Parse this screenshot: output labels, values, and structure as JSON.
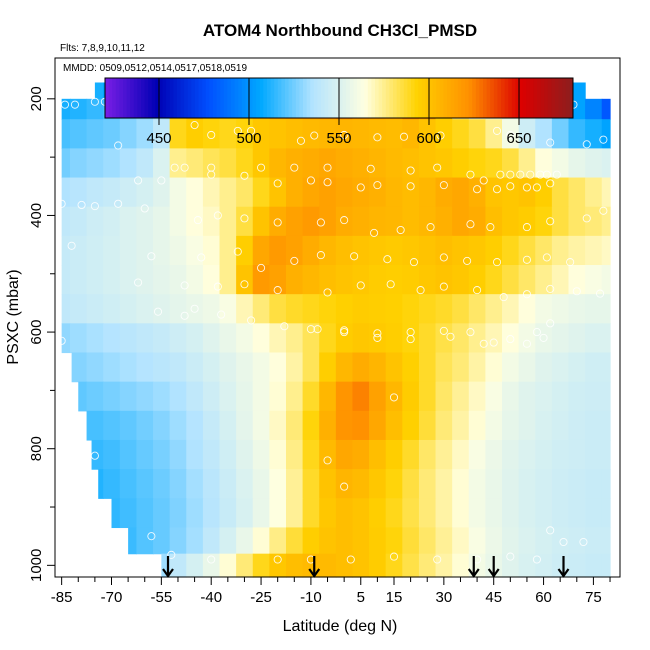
{
  "chart_data": {
    "type": "heatmap",
    "title": "ATOM4 Northbound CH3Cl_PMSD",
    "flights_label": "Flts: 7,8,9,10,11,12",
    "dates_label": "MMDD: 0509,0512,0514,0517,0518,0519",
    "xlabel": "Latitude (deg N)",
    "ylabel": "PSXC (mbar)",
    "xlim": [
      -87,
      83
    ],
    "ylim": [
      1020,
      130
    ],
    "x_ticks": [
      -85,
      -70,
      -55,
      -40,
      -25,
      -10,
      5,
      15,
      30,
      45,
      60,
      75
    ],
    "y_ticks": [
      200,
      400,
      600,
      800,
      1000
    ],
    "colorbar": {
      "min": 420,
      "max": 680,
      "ticks": [
        450,
        500,
        550,
        600,
        650
      ],
      "colors": [
        "#7a1ee6",
        "#0000b4",
        "#0050ff",
        "#00a8ff",
        "#b4e4ff",
        "#ffffe0",
        "#ffd200",
        "#ff9000",
        "#dc0000",
        "#8c1e1e"
      ]
    },
    "arrows_lat": [
      -53,
      -9,
      39,
      45,
      66
    ],
    "lat_grid": [
      -85,
      -80,
      -75,
      -70,
      -65,
      -60,
      -55,
      -50,
      -45,
      -40,
      -35,
      -30,
      -25,
      -20,
      -15,
      -10,
      -5,
      0,
      5,
      10,
      15,
      20,
      25,
      30,
      35,
      40,
      45,
      50,
      55,
      60,
      65,
      70,
      75,
      80
    ],
    "pressure_bins": [
      {
        "p": 190,
        "lat_range": [
          -75,
          75
        ],
        "values": [
          null,
          null,
          510,
          505,
          515,
          525,
          540,
          570,
          610,
          630,
          640,
          650,
          660,
          660,
          665,
          665,
          665,
          660,
          650,
          640,
          625,
          615,
          600,
          585,
          575,
          565,
          555,
          545,
          530,
          515,
          505,
          505,
          null,
          null
        ]
      },
      {
        "p": 210,
        "lat_range": [
          -85,
          80
        ],
        "values": [
          510,
          512,
          515,
          518,
          522,
          525,
          530,
          600,
          610,
          600,
          595,
          598,
          605,
          612,
          615,
          618,
          622,
          625,
          620,
          618,
          615,
          625,
          620,
          595,
          575,
          565,
          560,
          555,
          545,
          535,
          520,
          505,
          495,
          480
        ]
      },
      {
        "p": 260,
        "lat_range": [
          -85,
          80
        ],
        "values": [
          518,
          520,
          522,
          524,
          528,
          532,
          540,
          590,
          595,
          592,
          590,
          592,
          598,
          600,
          602,
          604,
          605,
          606,
          605,
          604,
          603,
          605,
          600,
          595,
          590,
          585,
          575,
          560,
          545,
          535,
          525,
          515,
          510,
          505
        ]
      },
      {
        "p": 310,
        "lat_range": [
          -85,
          80
        ],
        "values": [
          525,
          528,
          530,
          532,
          535,
          540,
          550,
          575,
          578,
          582,
          585,
          590,
          598,
          605,
          608,
          610,
          612,
          610,
          608,
          606,
          604,
          602,
          600,
          598,
          595,
          592,
          590,
          585,
          575,
          565,
          560,
          555,
          552,
          550
        ]
      },
      {
        "p": 360,
        "lat_range": [
          -85,
          80
        ],
        "values": [
          535,
          537,
          540,
          542,
          545,
          548,
          552,
          560,
          565,
          570,
          575,
          580,
          590,
          600,
          608,
          612,
          615,
          612,
          610,
          608,
          605,
          603,
          605,
          610,
          612,
          608,
          600,
          598,
          600,
          595,
          585,
          580,
          575,
          570
        ]
      },
      {
        "p": 410,
        "lat_range": [
          -85,
          80
        ],
        "values": [
          540,
          542,
          545,
          547,
          550,
          552,
          555,
          560,
          565,
          568,
          575,
          585,
          600,
          610,
          615,
          618,
          615,
          610,
          608,
          606,
          605,
          603,
          605,
          608,
          612,
          610,
          602,
          598,
          596,
          592,
          585,
          580,
          578,
          575
        ]
      },
      {
        "p": 460,
        "lat_range": [
          -85,
          80
        ],
        "values": [
          542,
          544,
          546,
          548,
          550,
          552,
          555,
          558,
          562,
          566,
          575,
          595,
          612,
          618,
          615,
          610,
          605,
          602,
          600,
          598,
          597,
          598,
          600,
          602,
          600,
          598,
          595,
          590,
          585,
          580,
          575,
          572,
          570,
          568
        ]
      },
      {
        "p": 510,
        "lat_range": [
          -85,
          80
        ],
        "values": [
          542,
          544,
          546,
          548,
          550,
          552,
          554,
          556,
          560,
          565,
          575,
          600,
          618,
          615,
          608,
          605,
          602,
          600,
          598,
          596,
          595,
          596,
          598,
          600,
          598,
          595,
          590,
          585,
          580,
          575,
          570,
          565,
          562,
          560
        ]
      },
      {
        "p": 560,
        "lat_range": [
          -85,
          80
        ],
        "values": [
          540,
          542,
          544,
          546,
          548,
          550,
          552,
          554,
          556,
          558,
          562,
          570,
          578,
          585,
          588,
          590,
          592,
          594,
          596,
          595,
          594,
          592,
          590,
          588,
          585,
          580,
          575,
          570,
          565,
          560,
          558,
          556,
          555,
          555
        ]
      },
      {
        "p": 610,
        "lat_range": [
          -85,
          80
        ],
        "values": [
          530,
          532,
          534,
          536,
          538,
          540,
          542,
          545,
          548,
          552,
          556,
          560,
          565,
          570,
          575,
          582,
          590,
          596,
          598,
          597,
          595,
          592,
          588,
          584,
          580,
          575,
          570,
          565,
          560,
          556,
          554,
          552,
          550,
          550
        ]
      },
      {
        "p": 660,
        "lat_range": [
          -82,
          80
        ],
        "values": [
          null,
          528,
          530,
          532,
          534,
          536,
          538,
          540,
          544,
          548,
          552,
          556,
          560,
          565,
          572,
          582,
          595,
          605,
          610,
          606,
          600,
          594,
          588,
          582,
          578,
          572,
          566,
          560,
          556,
          552,
          550,
          548,
          546,
          546
        ]
      },
      {
        "p": 710,
        "lat_range": [
          -80,
          80
        ],
        "values": [
          null,
          522,
          524,
          526,
          528,
          530,
          532,
          535,
          540,
          545,
          550,
          555,
          560,
          566,
          575,
          588,
          605,
          620,
          625,
          615,
          605,
          596,
          588,
          580,
          574,
          568,
          562,
          556,
          552,
          550,
          548,
          546,
          545,
          545
        ]
      },
      {
        "p": 760,
        "lat_range": [
          -78,
          80
        ],
        "values": [
          null,
          null,
          518,
          520,
          522,
          525,
          528,
          532,
          536,
          542,
          548,
          554,
          560,
          568,
          578,
          592,
          608,
          620,
          622,
          612,
          602,
          594,
          586,
          578,
          572,
          566,
          560,
          555,
          552,
          549,
          547,
          545,
          544,
          544
        ]
      },
      {
        "p": 810,
        "lat_range": [
          -76,
          80
        ],
        "values": [
          null,
          null,
          515,
          517,
          520,
          523,
          526,
          530,
          535,
          540,
          546,
          552,
          558,
          566,
          576,
          590,
          604,
          612,
          610,
          602,
          595,
          588,
          580,
          574,
          568,
          562,
          557,
          553,
          550,
          548,
          546,
          545,
          544,
          544
        ]
      },
      {
        "p": 860,
        "lat_range": [
          -74,
          80
        ],
        "values": [
          null,
          null,
          512,
          515,
          518,
          521,
          524,
          528,
          533,
          538,
          544,
          550,
          556,
          564,
          574,
          588,
          600,
          606,
          604,
          598,
          592,
          585,
          578,
          572,
          566,
          560,
          556,
          552,
          549,
          547,
          545,
          544,
          543,
          543
        ]
      },
      {
        "p": 910,
        "lat_range": [
          -70,
          80
        ],
        "values": [
          null,
          null,
          null,
          514,
          517,
          520,
          523,
          527,
          532,
          537,
          543,
          549,
          556,
          564,
          574,
          588,
          598,
          602,
          600,
          595,
          590,
          584,
          578,
          572,
          566,
          560,
          556,
          552,
          549,
          547,
          545,
          544,
          543,
          543
        ]
      },
      {
        "p": 960,
        "lat_range": [
          -65,
          80
        ],
        "values": [
          null,
          null,
          null,
          null,
          516,
          520,
          523,
          528,
          533,
          540,
          548,
          556,
          566,
          576,
          586,
          595,
          600,
          602,
          600,
          596,
          592,
          586,
          580,
          574,
          568,
          562,
          557,
          553,
          550,
          548,
          546,
          545,
          544,
          544
        ]
      },
      {
        "p": 1000,
        "lat_range": [
          -55,
          80
        ],
        "values": [
          null,
          null,
          null,
          null,
          null,
          null,
          532,
          540,
          548,
          556,
          566,
          578,
          590,
          598,
          602,
          604,
          604,
          602,
          600,
          596,
          590,
          584,
          578,
          572,
          566,
          560,
          556,
          552,
          549,
          547,
          545,
          544,
          543,
          543
        ]
      }
    ],
    "observations": [
      [
        -70,
        193
      ],
      [
        -66,
        193
      ],
      [
        -63,
        193
      ],
      [
        -61,
        193
      ],
      [
        -58,
        193
      ],
      [
        -84,
        210
      ],
      [
        -81,
        210
      ],
      [
        -75,
        205
      ],
      [
        -72,
        205
      ],
      [
        -20,
        210
      ],
      [
        63,
        210
      ],
      [
        66,
        210
      ],
      [
        69,
        210
      ],
      [
        -68,
        280
      ],
      [
        -45,
        245
      ],
      [
        -40,
        262
      ],
      [
        -32,
        255
      ],
      [
        -28,
        255
      ],
      [
        -13,
        272
      ],
      [
        -9,
        263
      ],
      [
        0,
        262
      ],
      [
        10,
        266
      ],
      [
        18,
        265
      ],
      [
        29,
        263
      ],
      [
        46,
        255
      ],
      [
        50,
        262
      ],
      [
        62,
        275
      ],
      [
        73,
        278
      ],
      [
        78,
        270
      ],
      [
        -51,
        318
      ],
      [
        -48,
        318
      ],
      [
        -40,
        318
      ],
      [
        -25,
        318
      ],
      [
        -15,
        318
      ],
      [
        -5,
        318
      ],
      [
        8,
        320
      ],
      [
        20,
        323
      ],
      [
        28,
        318
      ],
      [
        38,
        330
      ],
      [
        42,
        340
      ],
      [
        47,
        330
      ],
      [
        50,
        330
      ],
      [
        53,
        330
      ],
      [
        56,
        330
      ],
      [
        59,
        330
      ],
      [
        61,
        330
      ],
      [
        64,
        330
      ],
      [
        -62,
        340
      ],
      [
        -55,
        340
      ],
      [
        -40,
        330
      ],
      [
        -30,
        332
      ],
      [
        -20,
        345
      ],
      [
        -10,
        340
      ],
      [
        -5,
        343
      ],
      [
        5,
        352
      ],
      [
        10,
        348
      ],
      [
        20,
        350
      ],
      [
        30,
        348
      ],
      [
        40,
        355
      ],
      [
        46,
        355
      ],
      [
        50,
        350
      ],
      [
        55,
        352
      ],
      [
        58,
        352
      ],
      [
        62,
        345
      ],
      [
        -85,
        380
      ],
      [
        -79,
        382
      ],
      [
        -75,
        384
      ],
      [
        -68,
        380
      ],
      [
        -60,
        388
      ],
      [
        -44,
        408
      ],
      [
        -38,
        400
      ],
      [
        -30,
        405
      ],
      [
        -20,
        412
      ],
      [
        -7,
        412
      ],
      [
        0,
        408
      ],
      [
        9,
        430
      ],
      [
        17,
        425
      ],
      [
        26,
        420
      ],
      [
        38,
        415
      ],
      [
        44,
        420
      ],
      [
        55,
        420
      ],
      [
        62,
        410
      ],
      [
        73,
        405
      ],
      [
        78,
        392
      ],
      [
        -82,
        452
      ],
      [
        -58,
        470
      ],
      [
        -43,
        472
      ],
      [
        -32,
        462
      ],
      [
        -25,
        490
      ],
      [
        -15,
        478
      ],
      [
        -7,
        468
      ],
      [
        3,
        470
      ],
      [
        13,
        475
      ],
      [
        21,
        480
      ],
      [
        30,
        472
      ],
      [
        37,
        478
      ],
      [
        46,
        480
      ],
      [
        55,
        476
      ],
      [
        61,
        472
      ],
      [
        68,
        480
      ],
      [
        -62,
        515
      ],
      [
        -48,
        520
      ],
      [
        -38,
        522
      ],
      [
        -30,
        518
      ],
      [
        -20,
        528
      ],
      [
        -5,
        532
      ],
      [
        5,
        520
      ],
      [
        14,
        518
      ],
      [
        23,
        528
      ],
      [
        30,
        522
      ],
      [
        40,
        528
      ],
      [
        48,
        540
      ],
      [
        55,
        535
      ],
      [
        62,
        526
      ],
      [
        70,
        530
      ],
      [
        77,
        534
      ],
      [
        -56,
        565
      ],
      [
        -48,
        572
      ],
      [
        -45,
        560
      ],
      [
        -37,
        570
      ],
      [
        -28,
        580
      ],
      [
        -18,
        590
      ],
      [
        -8,
        595
      ],
      [
        0,
        600
      ],
      [
        10,
        610
      ],
      [
        20,
        612
      ],
      [
        32,
        608
      ],
      [
        42,
        620
      ],
      [
        50,
        612
      ],
      [
        58,
        600
      ],
      [
        62,
        585
      ],
      [
        -85,
        615
      ],
      [
        -10,
        595
      ],
      [
        0,
        597
      ],
      [
        10,
        602
      ],
      [
        20,
        600
      ],
      [
        30,
        598
      ],
      [
        38,
        600
      ],
      [
        45,
        618
      ],
      [
        55,
        620
      ],
      [
        60,
        610
      ],
      [
        -75,
        812
      ],
      [
        15,
        712
      ],
      [
        -5,
        820
      ],
      [
        0,
        865
      ],
      [
        -58,
        950
      ],
      [
        -52,
        982
      ],
      [
        -40,
        990
      ],
      [
        -20,
        990
      ],
      [
        -10,
        990
      ],
      [
        2,
        990
      ],
      [
        15,
        985
      ],
      [
        28,
        990
      ],
      [
        40,
        990
      ],
      [
        50,
        985
      ],
      [
        58,
        990
      ],
      [
        62,
        940
      ],
      [
        66,
        960
      ],
      [
        72,
        960
      ]
    ]
  }
}
